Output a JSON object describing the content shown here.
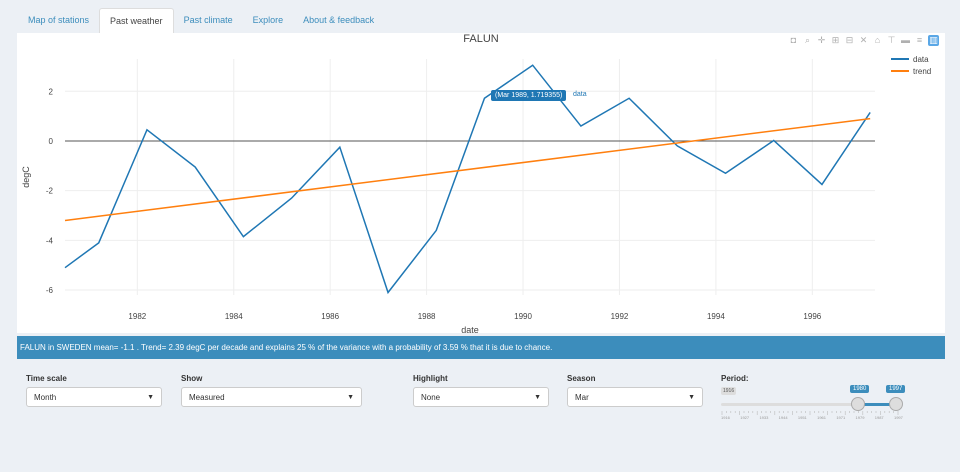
{
  "tabs": [
    {
      "label": "Map of stations",
      "active": false
    },
    {
      "label": "Past weather",
      "active": true
    },
    {
      "label": "Past climate",
      "active": false
    },
    {
      "label": "Explore",
      "active": false
    },
    {
      "label": "About & feedback",
      "active": false
    }
  ],
  "toolbar_icons": [
    "camera-icon",
    "zoom-icon",
    "pan-icon",
    "zoom-in-icon",
    "zoom-out-icon",
    "autoscale-icon",
    "reset-axes-icon",
    "spike-lines-icon",
    "hover-closest-icon",
    "hover-compare-icon",
    "plotly-logo-icon"
  ],
  "chart_data": {
    "type": "line",
    "title": "FALUN",
    "xlabel": "date",
    "ylabel": "degC",
    "xlim": [
      1980.5,
      1997.3
    ],
    "ylim": [
      -6.2,
      3.3
    ],
    "x_ticks": [
      1982,
      1984,
      1986,
      1988,
      1990,
      1992,
      1994,
      1996
    ],
    "y_ticks": [
      -6,
      -4,
      -2,
      0,
      2
    ],
    "zero_line": true,
    "legend_position": "top-right",
    "series": [
      {
        "name": "data",
        "color": "#1f77b4",
        "x": [
          1980.5,
          1981.2,
          1982.2,
          1983.2,
          1984.2,
          1985.2,
          1986.2,
          1987.2,
          1988.2,
          1989.2,
          1990.2,
          1991.2,
          1992.2,
          1993.2,
          1994.2,
          1995.2,
          1996.2,
          1997.2
        ],
        "y": [
          -5.1,
          -4.1,
          0.45,
          -1.05,
          -3.85,
          -2.3,
          -0.25,
          -6.1,
          -3.6,
          1.72,
          3.05,
          0.6,
          1.72,
          -0.2,
          -1.3,
          0.02,
          -1.75,
          1.15
        ]
      },
      {
        "name": "trend",
        "color": "#ff7f0e",
        "x": [
          1980.5,
          1997.2
        ],
        "y": [
          -3.2,
          0.9
        ]
      }
    ],
    "hover": {
      "label": "(Mar 1989, 1.719355)",
      "series": "data"
    }
  },
  "info_text": "FALUN in SWEDEN mean= -1.1 . Trend= 2.39 degC per decade and explains 25 % of the variance with a probability of 3.59 % that it is due to chance.",
  "controls": {
    "time_scale": {
      "label": "Time scale",
      "value": "Month"
    },
    "show": {
      "label": "Show",
      "value": "Measured"
    },
    "highlight": {
      "label": "Highlight",
      "value": "None"
    },
    "season": {
      "label": "Season",
      "value": "Mar"
    },
    "period": {
      "label": "Period:",
      "min_label": "1916",
      "from": "1980",
      "to": "1997",
      "range_min": 1916,
      "range_max": 1997,
      "tick_labels": [
        "1916",
        "1927",
        "1933",
        "1944",
        "1951",
        "1961",
        "1971",
        "1979",
        "1987",
        "1997"
      ]
    }
  }
}
